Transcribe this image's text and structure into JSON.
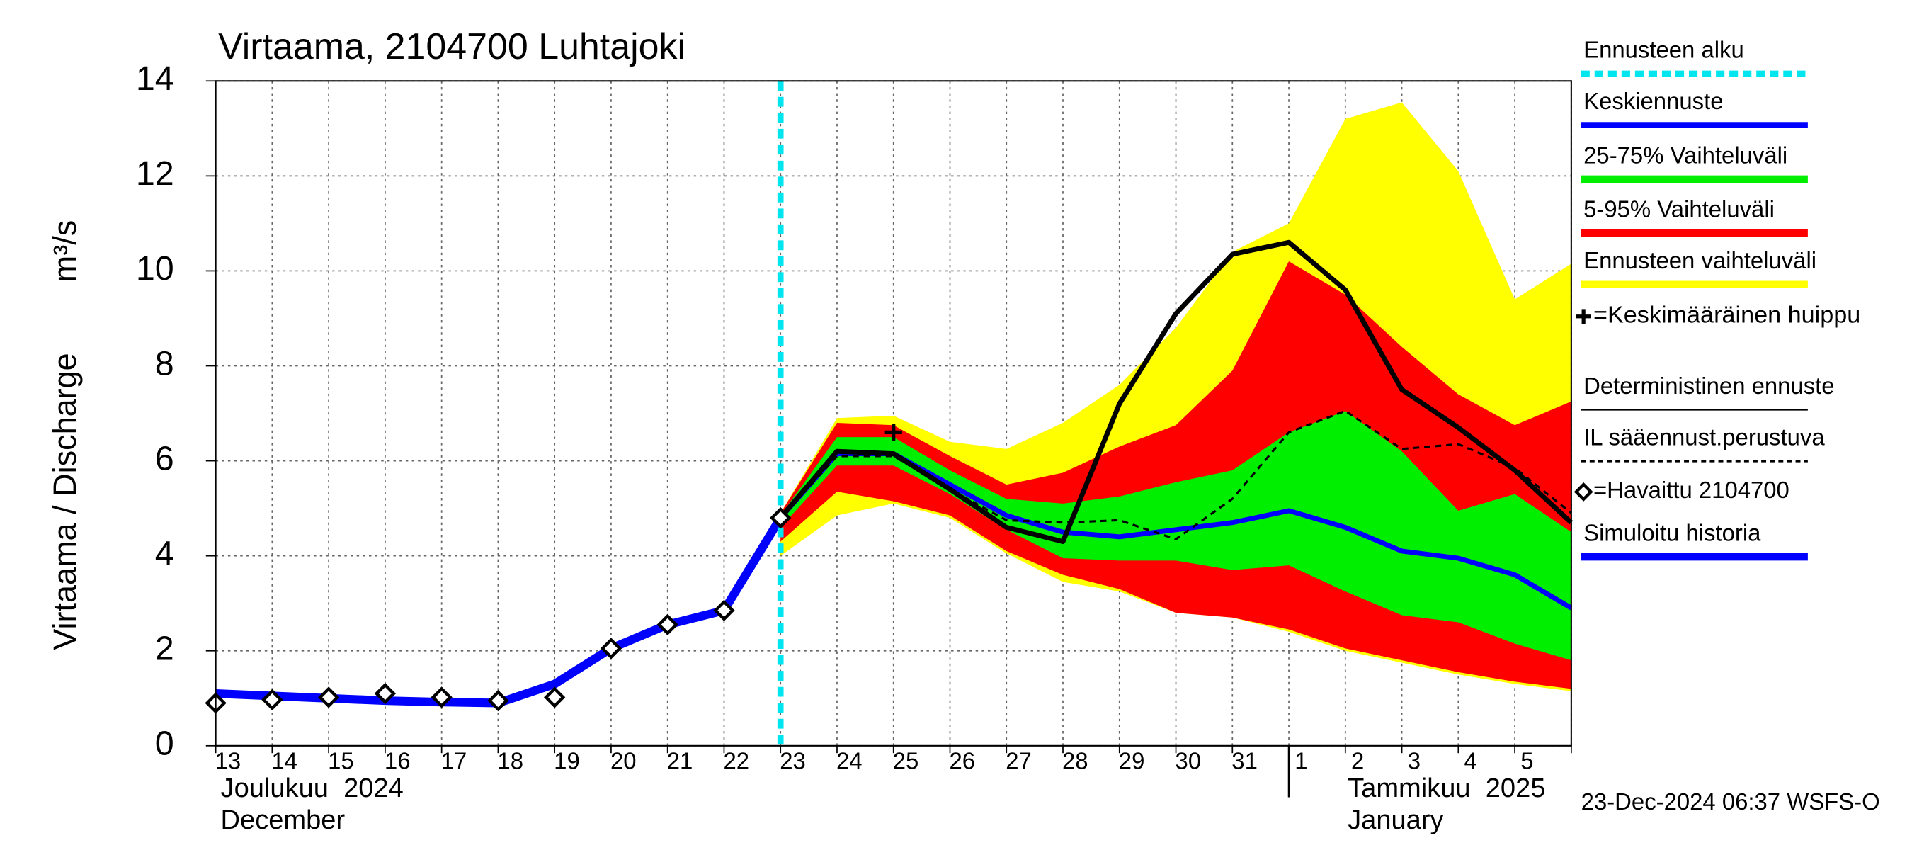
{
  "chart_data": {
    "type": "line",
    "title": "Virtaama, 2104700 Luhtajoki",
    "ylabel": "Virtaama / Discharge",
    "yunit": "m³/s",
    "categories": [
      "13",
      "14",
      "15",
      "16",
      "17",
      "18",
      "19",
      "20",
      "21",
      "22",
      "23",
      "24",
      "25",
      "26",
      "27",
      "28",
      "29",
      "30",
      "31",
      "1",
      "2",
      "3",
      "4",
      "5",
      null
    ],
    "month_labels": [
      {
        "fi": "Joulukuu  2024",
        "en": "December",
        "index": 0
      },
      {
        "fi": "Tammikuu  2025",
        "en": "January",
        "index": 19
      }
    ],
    "footer": "23-Dec-2024 06:37 WSFS-O",
    "ylim": [
      0,
      14
    ],
    "yticks": [
      0,
      2,
      4,
      6,
      8,
      10,
      12,
      14
    ],
    "grid": true,
    "series": [
      {
        "name": "Ennusteen alku",
        "kind": "vline",
        "color": "#00e5ee",
        "x": 10
      },
      {
        "name": "Keskiennuste",
        "kind": "line",
        "color": "#0000ff",
        "values": [
          null,
          null,
          null,
          null,
          null,
          null,
          null,
          null,
          null,
          null,
          4.8,
          6.15,
          6.15,
          5.5,
          4.85,
          4.5,
          4.4,
          4.55,
          4.7,
          4.95,
          4.6,
          4.1,
          3.95,
          3.6,
          2.9
        ]
      },
      {
        "name": "25-75% Vaihteluväli",
        "kind": "band",
        "color": "#00ee00",
        "lower": [
          null,
          null,
          null,
          null,
          null,
          null,
          null,
          null,
          null,
          null,
          4.6,
          5.9,
          5.9,
          5.3,
          4.55,
          3.95,
          3.9,
          3.9,
          3.7,
          3.8,
          3.25,
          2.75,
          2.6,
          2.15,
          1.8
        ],
        "upper": [
          null,
          null,
          null,
          null,
          null,
          null,
          null,
          null,
          null,
          null,
          4.85,
          6.5,
          6.5,
          5.8,
          5.2,
          5.1,
          5.25,
          5.55,
          5.8,
          6.6,
          7.05,
          6.2,
          4.95,
          5.3,
          4.5
        ]
      },
      {
        "name": "5-95% Vaihteluväli",
        "kind": "band",
        "color": "#ff0000",
        "lower": [
          null,
          null,
          null,
          null,
          null,
          null,
          null,
          null,
          null,
          null,
          4.3,
          5.35,
          5.15,
          4.85,
          4.1,
          3.6,
          3.3,
          2.8,
          2.7,
          2.45,
          2.05,
          1.8,
          1.55,
          1.35,
          1.2
        ],
        "upper": [
          null,
          null,
          null,
          null,
          null,
          null,
          null,
          null,
          null,
          null,
          4.9,
          6.8,
          6.75,
          6.1,
          5.5,
          5.75,
          6.3,
          6.75,
          7.9,
          10.2,
          9.5,
          8.4,
          7.4,
          6.75,
          7.25
        ]
      },
      {
        "name": "Ennusteen vaihteluväli",
        "kind": "band",
        "color": "#ffff00",
        "lower": [
          null,
          null,
          null,
          null,
          null,
          null,
          null,
          null,
          null,
          null,
          4.0,
          4.85,
          5.1,
          4.8,
          4.05,
          3.45,
          3.25,
          2.8,
          2.7,
          2.4,
          2.0,
          1.75,
          1.5,
          1.3,
          1.15
        ],
        "upper": [
          null,
          null,
          null,
          null,
          null,
          null,
          null,
          null,
          null,
          null,
          4.9,
          6.9,
          6.95,
          6.4,
          6.25,
          6.8,
          7.6,
          8.8,
          10.4,
          11.0,
          13.2,
          13.55,
          12.1,
          9.4,
          10.15
        ]
      },
      {
        "name": "=Keskimääräinen huippu",
        "kind": "peak",
        "color": "#000000",
        "x": 12,
        "y": 6.6
      },
      {
        "name": "Deterministinen ennuste",
        "kind": "line",
        "color": "#000000",
        "values": [
          null,
          null,
          null,
          null,
          null,
          null,
          null,
          null,
          null,
          null,
          4.8,
          6.2,
          6.15,
          5.4,
          4.6,
          4.3,
          7.2,
          9.1,
          10.35,
          10.6,
          9.6,
          7.5,
          6.7,
          5.8,
          4.7
        ]
      },
      {
        "name": "IL sääennust.perustuva",
        "kind": "dashed",
        "color": "#000000",
        "values": [
          null,
          null,
          null,
          null,
          null,
          null,
          null,
          null,
          null,
          null,
          4.8,
          6.1,
          6.1,
          5.4,
          4.75,
          4.7,
          4.75,
          4.35,
          5.2,
          6.6,
          7.05,
          6.25,
          6.35,
          5.85,
          4.9
        ]
      },
      {
        "name": "=Havaittu 2104700",
        "kind": "points",
        "color": "#000000",
        "values": [
          0.9,
          0.97,
          1.02,
          1.1,
          1.02,
          0.95,
          1.02,
          2.05,
          2.55,
          2.85,
          4.8,
          null,
          null,
          null,
          null,
          null,
          null,
          null,
          null,
          null,
          null,
          null,
          null,
          null,
          null
        ]
      },
      {
        "name": "Simuloitu historia",
        "kind": "history",
        "color": "#0000ff",
        "values": [
          1.1,
          1.05,
          1.0,
          0.95,
          0.92,
          0.9,
          1.3,
          2.05,
          2.55,
          2.85,
          4.8,
          null,
          null,
          null,
          null,
          null,
          null,
          null,
          null,
          null,
          null,
          null,
          null,
          null,
          null
        ]
      }
    ]
  }
}
